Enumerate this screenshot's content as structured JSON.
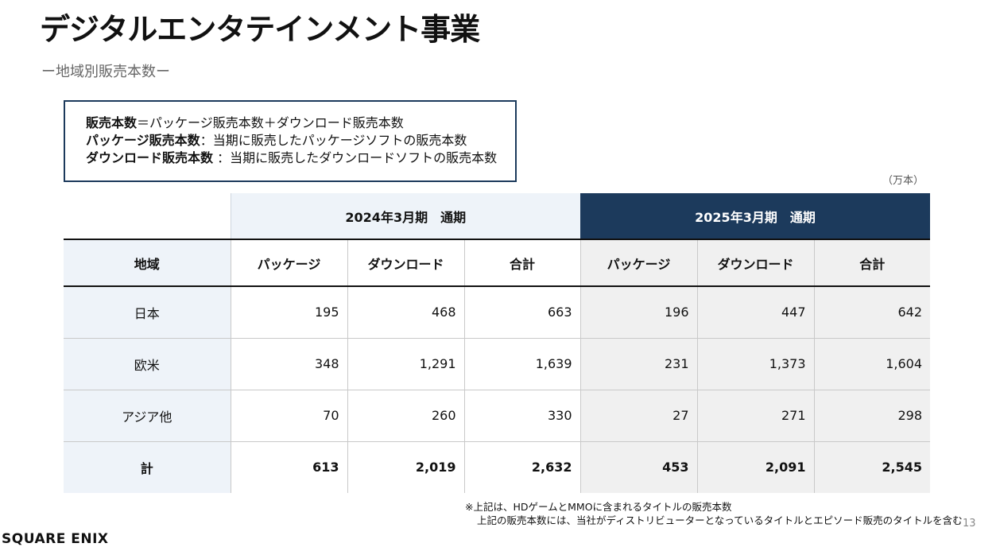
{
  "title": "デジタルエンタテインメント事業",
  "subtitle": "ー地域別販売本数ー",
  "definitions": [
    {
      "term": "販売本数",
      "sep": "＝",
      "text": "パッケージ販売本数＋ダウンロード販売本数"
    },
    {
      "term": "パッケージ販売本数",
      "sep": "：",
      "text": "当期に販売したパッケージソフトの販売本数"
    },
    {
      "term": "ダウンロード販売本数",
      "sep": " ：",
      "text": "当期に販売したダウンロードソフトの販売本数"
    }
  ],
  "unit": "（万本）",
  "table": {
    "period_2024": "2024年3月期　通期",
    "period_2025": "2025年3月期　通期",
    "headers": [
      "地域",
      "パッケージ",
      "ダウンロード",
      "合計",
      "パッケージ",
      "ダウンロード",
      "合計"
    ],
    "rows": [
      {
        "region": "日本",
        "values": [
          "195",
          "468",
          "663",
          "196",
          "447",
          "642"
        ]
      },
      {
        "region": "欧米",
        "values": [
          "348",
          "1,291",
          "1,639",
          "231",
          "1,373",
          "1,604"
        ]
      },
      {
        "region": "アジア他",
        "values": [
          "70",
          "260",
          "330",
          "27",
          "271",
          "298"
        ]
      },
      {
        "region": "計",
        "values": [
          "613",
          "2,019",
          "2,632",
          "453",
          "2,091",
          "2,545"
        ]
      }
    ]
  },
  "notes": [
    "※上記は、HDゲームとMMOに含まれるタイトルの販売本数",
    "上記の販売本数には、当社がディストリビューターとなっているタイトルとエピソード販売のタイトルを含む"
  ],
  "page_number": "13",
  "logo": "SQUARE ENIX",
  "colors": {
    "navy": "#1c3a5c",
    "light_blue": "#eef3f9",
    "light_gray": "#f0f0f0"
  }
}
